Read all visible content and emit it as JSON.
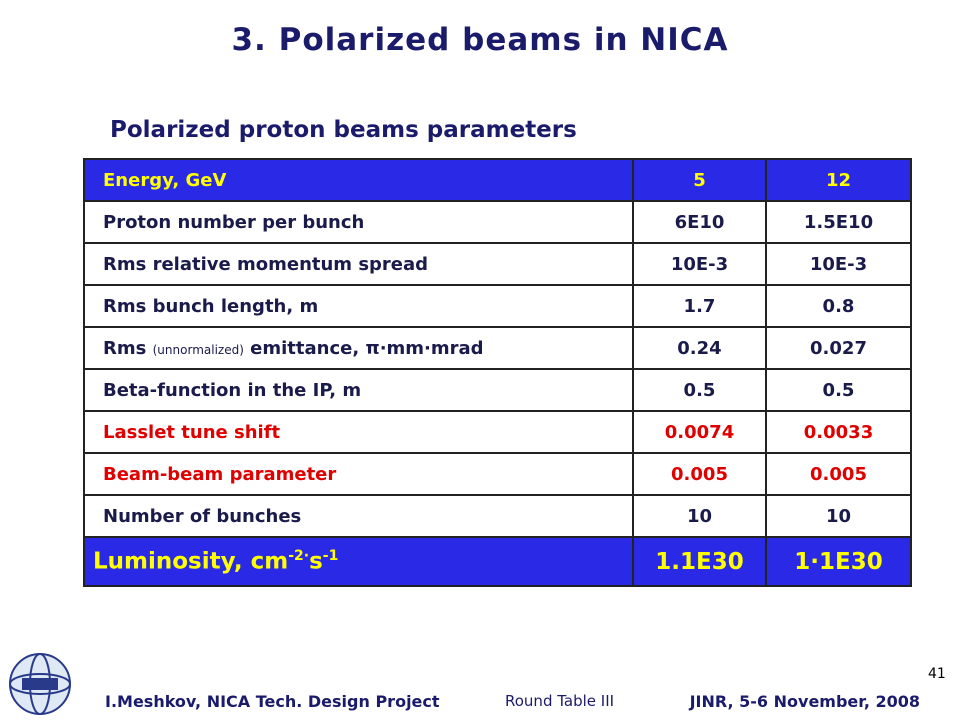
{
  "header": {
    "title": "3. Polarized beams in NICA",
    "subtitle": "Polarized proton beams parameters"
  },
  "table": {
    "header": [
      "Energy,  GeV",
      "5",
      "12"
    ],
    "rows": [
      [
        "Proton number per bunch",
        "6E10",
        "1.5E10"
      ],
      [
        "Rms relative momentum spread",
        "10E-3",
        "10E-3"
      ],
      [
        "Rms bunch length, m",
        "1.7",
        "0.8"
      ],
      [
        [
          "Rms",
          "(unnormalized)",
          "emittance, π·mm·mrad"
        ],
        "0.24",
        "0.027"
      ],
      [
        "Beta-function in the IP, m",
        "0.5",
        "0.5"
      ],
      [
        "Lasslet tune shift",
        "0.0074",
        "0.0033"
      ],
      [
        "Beam-beam parameter",
        "0.005",
        "0.005"
      ],
      [
        "Number of bunches",
        "10",
        "10"
      ],
      [
        [
          "Luminosity, cm",
          "-2·",
          "s",
          "-1"
        ],
        "1.1E30",
        "1·1E30"
      ]
    ]
  },
  "footer": {
    "author": "I.Meshkov, NICA Tech. Design Project",
    "event": "Round Table III",
    "place_date": "JINR, 5-6 November, 2008",
    "page_number": "41"
  }
}
